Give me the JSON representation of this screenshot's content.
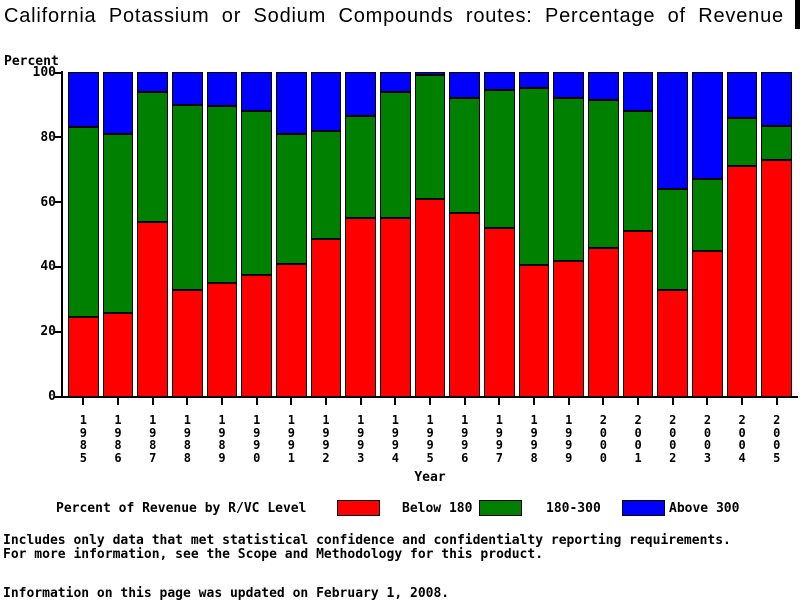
{
  "title": "California Potassium or Sodium Compounds routes: Percentage of Revenue",
  "axis": {
    "percent": "Percent",
    "year": "Year"
  },
  "legend": {
    "title": "Percent of Revenue by R/VC Level",
    "items": [
      {
        "label": "Below 180",
        "color": "#ff0000"
      },
      {
        "label": "180-300",
        "color": "#008000"
      },
      {
        "label": "Above 300",
        "color": "#0000ff"
      }
    ]
  },
  "footer": {
    "line1": "Includes only data that met statistical confidence and confidentialty reporting requirements.",
    "line2": "For more information, see the Scope and Methodology for this product.",
    "updated": "Information on this page was updated on February 1, 2008."
  },
  "chart_data": {
    "type": "bar",
    "stacked": true,
    "title": "California Potassium or Sodium Compounds routes: Percentage of Revenue",
    "xlabel": "Year",
    "ylabel": "Percent",
    "ylim": [
      0,
      100
    ],
    "yticks": [
      0,
      20,
      40,
      60,
      80,
      100
    ],
    "grid": false,
    "legend_position": "bottom",
    "categories": [
      "1985",
      "1986",
      "1987",
      "1988",
      "1989",
      "1990",
      "1991",
      "1992",
      "1993",
      "1994",
      "1995",
      "1996",
      "1997",
      "1998",
      "1999",
      "2000",
      "2001",
      "2002",
      "2003",
      "2004",
      "2005"
    ],
    "series": [
      {
        "name": "Below 180",
        "color": "#ff0000",
        "values": [
          24.5,
          26,
          54,
          33,
          35,
          37.5,
          41,
          48.5,
          55,
          55,
          61,
          56.5,
          52,
          40.5,
          42,
          46,
          51,
          33,
          45,
          71,
          73
        ]
      },
      {
        "name": "180-300",
        "color": "#008000",
        "values": [
          58.5,
          55,
          40,
          57,
          54.5,
          50.5,
          40,
          33.5,
          31.5,
          39,
          38,
          35.5,
          42.5,
          54.5,
          50,
          45.5,
          37,
          31,
          22,
          15,
          10.5
        ]
      },
      {
        "name": "Above 300",
        "color": "#0000ff",
        "values": [
          17,
          19,
          6,
          10,
          10.5,
          12,
          19,
          18,
          13.5,
          6,
          1,
          8,
          5.5,
          5,
          8,
          8.5,
          12,
          36,
          33,
          14,
          16.5
        ]
      }
    ]
  }
}
